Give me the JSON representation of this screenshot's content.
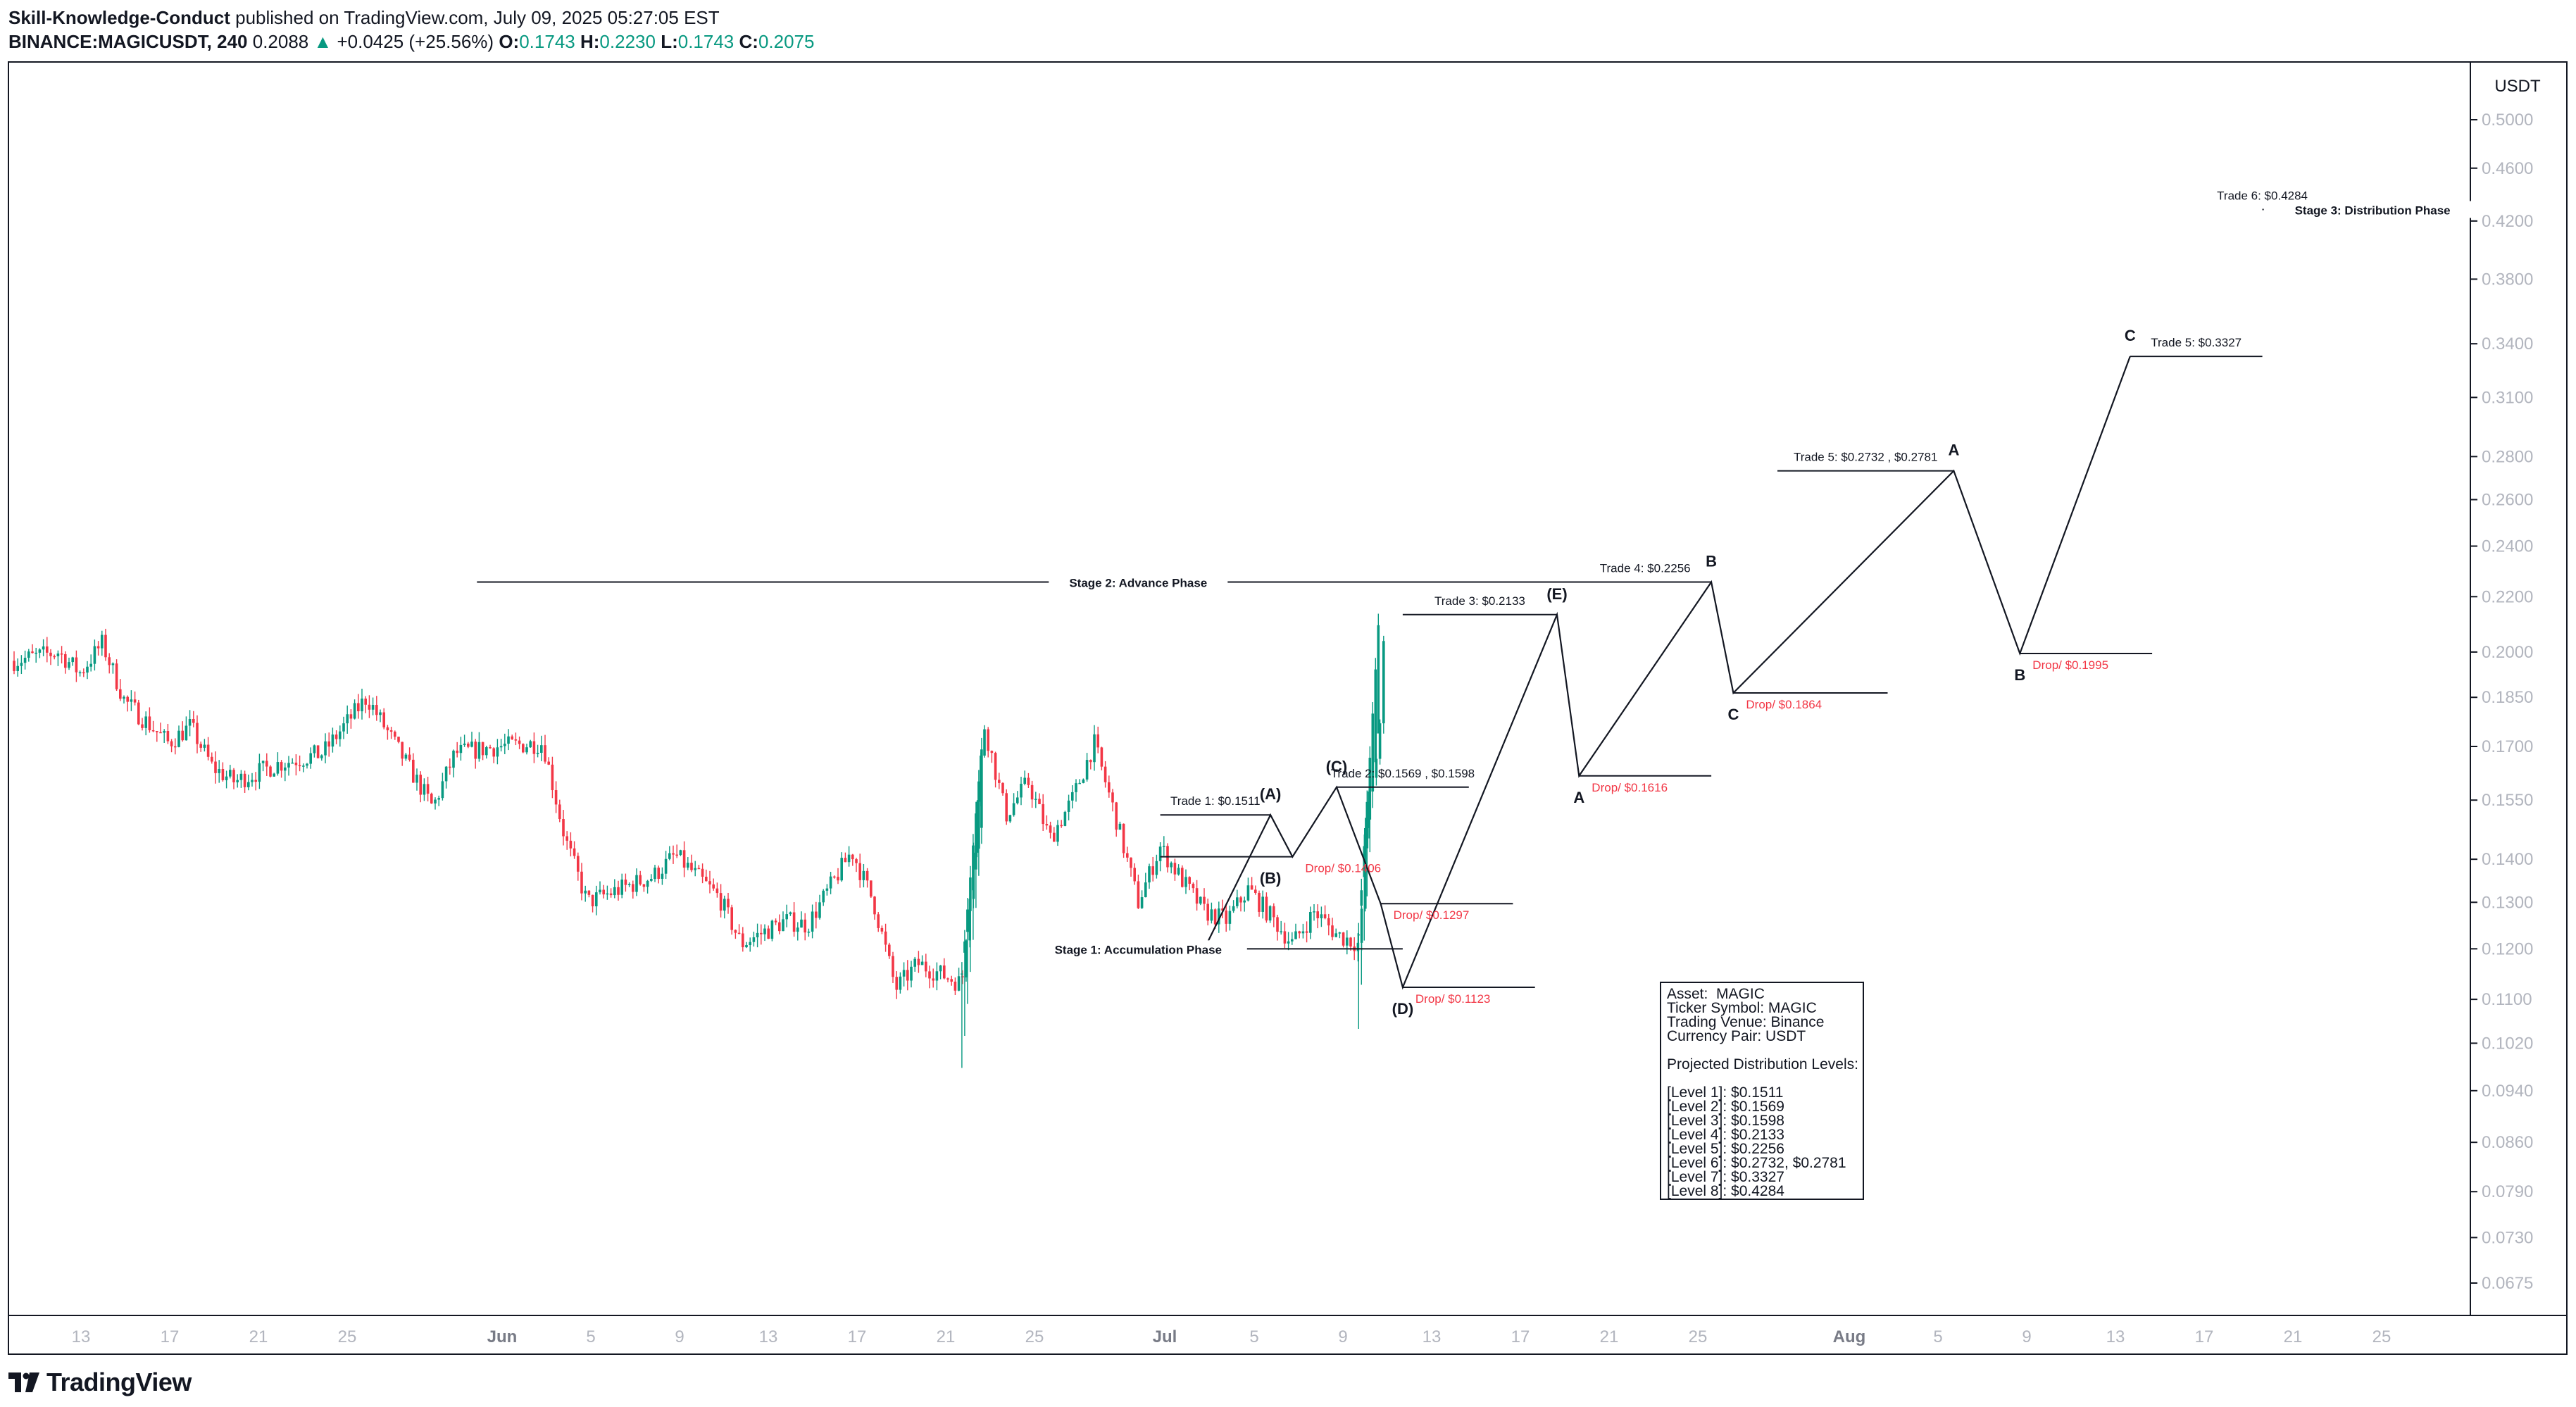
{
  "header": {
    "author": "Skill-Knowledge-Conduct",
    "published": " published on TradingView.com, July 09, 2025 05:27:05 EST",
    "symbol": "BINANCE:MAGICUSDT, 240",
    "last": "0.2088",
    "change": "+0.0425 (+25.56%)",
    "o_label": "O:",
    "o_value": "0.1743",
    "h_label": "H:",
    "h_value": "0.2230",
    "l_label": "L:",
    "l_value": "0.1743",
    "c_label": "C:",
    "c_value": "0.2075"
  },
  "footer": {
    "brand": "TradingView"
  },
  "colors": {
    "up": "#089981",
    "down": "#f23645",
    "drop_text": "#f23645",
    "line": "#131722",
    "grid_text": "#b2b5be"
  },
  "chart_data": {
    "type": "candlestick",
    "currency_label": "USDT",
    "y_scale": "log",
    "y_ticks": [
      "0.5000",
      "0.4600",
      "0.4200",
      "0.3800",
      "0.3400",
      "0.3100",
      "0.2800",
      "0.2600",
      "0.2400",
      "0.2200",
      "0.2000",
      "0.1850",
      "0.1700",
      "0.1550",
      "0.1400",
      "0.1300",
      "0.1200",
      "0.1100",
      "0.1020",
      "0.0940",
      "0.0860",
      "0.0790",
      "0.0730",
      "0.0675"
    ],
    "x_axis": [
      "13",
      "17",
      "21",
      "25",
      "Jun",
      "5",
      "9",
      "13",
      "17",
      "21",
      "25",
      "Jul",
      "5",
      "9",
      "13",
      "17",
      "21",
      "25",
      "Aug",
      "5",
      "9",
      "13",
      "17",
      "21",
      "25"
    ],
    "x_axis_bold": [
      "Jun",
      "Jul",
      "Aug"
    ],
    "x_range_days": [
      "2025-05-08",
      "2025-08-28"
    ],
    "price_path": [
      [
        "2025-05-08",
        0.197
      ],
      [
        "2025-05-10",
        0.2
      ],
      [
        "2025-05-11",
        0.193
      ],
      [
        "2025-05-12",
        0.203
      ],
      [
        "2025-05-13",
        0.184
      ],
      [
        "2025-05-15",
        0.171
      ],
      [
        "2025-05-16",
        0.176
      ],
      [
        "2025-05-17",
        0.164
      ],
      [
        "2025-05-18",
        0.16
      ],
      [
        "2025-05-20",
        0.165
      ],
      [
        "2025-05-22",
        0.168
      ],
      [
        "2025-05-24",
        0.185
      ],
      [
        "2025-05-26",
        0.163
      ],
      [
        "2025-05-27",
        0.153
      ],
      [
        "2025-05-28",
        0.168
      ],
      [
        "2025-05-30",
        0.17
      ],
      [
        "2025-06-01",
        0.171
      ],
      [
        "2025-06-02",
        0.145
      ],
      [
        "2025-06-03",
        0.13
      ],
      [
        "2025-06-04",
        0.132
      ],
      [
        "2025-06-06",
        0.136
      ],
      [
        "2025-06-07",
        0.141
      ],
      [
        "2025-06-09",
        0.131
      ],
      [
        "2025-06-10",
        0.121
      ],
      [
        "2025-06-12",
        0.126
      ],
      [
        "2025-06-13",
        0.125
      ],
      [
        "2025-06-15",
        0.142
      ],
      [
        "2025-06-16",
        0.13
      ],
      [
        "2025-06-17",
        0.112
      ],
      [
        "2025-06-18",
        0.117
      ],
      [
        "2025-06-20",
        0.113
      ],
      [
        "2025-06-21",
        0.177
      ],
      [
        "2025-06-22",
        0.151
      ],
      [
        "2025-06-23",
        0.16
      ],
      [
        "2025-06-24",
        0.145
      ],
      [
        "2025-06-25",
        0.155
      ],
      [
        "2025-06-26",
        0.171
      ],
      [
        "2025-06-27",
        0.15
      ],
      [
        "2025-06-28",
        0.13
      ],
      [
        "2025-06-29",
        0.143
      ],
      [
        "2025-06-30",
        0.135
      ],
      [
        "2025-07-01",
        0.128
      ],
      [
        "2025-07-02",
        0.126
      ],
      [
        "2025-07-03",
        0.133
      ],
      [
        "2025-07-04",
        0.127
      ],
      [
        "2025-07-05",
        0.121
      ],
      [
        "2025-07-06",
        0.128
      ],
      [
        "2025-07-07",
        0.123
      ],
      [
        "2025-07-08",
        0.121
      ],
      [
        "2025-07-08",
        0.128
      ],
      [
        "2025-07-08",
        0.15
      ],
      [
        "2025-07-09",
        0.176
      ],
      [
        "2025-07-09",
        0.207
      ]
    ],
    "highlight_candles": [
      [
        "2025-06-20",
        "2025-06-21",
        0.115,
        0.177
      ],
      [
        "2025-07-08",
        "2025-07-09",
        0.123,
        0.223
      ]
    ],
    "stage_lines": [
      {
        "label": "Stage 1: Accumulation Phase",
        "x1": "2025-06-25",
        "x2": "2025-07-10",
        "y": 0.12,
        "label_at": "2025-06-28"
      },
      {
        "label": "Stage 2: Advance Phase",
        "x1": "2025-05-29",
        "x2": "2025-07-22",
        "y": 0.2256,
        "label_at": "2025-06-28"
      },
      {
        "label": "Stage 3: Distribution Phase",
        "x1": "2025-08-18",
        "x2": "2025-08-19",
        "y": 0.4284,
        "label_at": "2025-08-23"
      }
    ],
    "projection_path": [
      [
        "2025-07-01",
        0.12
      ],
      [
        "2025-07-04",
        0.1511
      ],
      [
        "2025-07-05",
        0.1406
      ],
      [
        "2025-07-07",
        0.1585
      ],
      [
        "2025-07-09",
        0.1297
      ],
      [
        "2025-07-10",
        0.1123
      ],
      [
        "2025-07-17",
        0.2133
      ],
      [
        "2025-07-18",
        0.1616
      ],
      [
        "2025-07-24",
        0.2256
      ],
      [
        "2025-07-25",
        0.1864
      ],
      [
        "2025-08-04",
        0.2732
      ],
      [
        "2025-08-07",
        0.1995
      ],
      [
        "2025-08-12",
        0.3327
      ]
    ],
    "levels": [
      {
        "label": "Trade 1: $0.1511",
        "x1": "2025-06-29",
        "x2": "2025-07-04",
        "y": 0.1511,
        "kind": "trade"
      },
      {
        "label": "",
        "x1": "2025-06-29",
        "x2": "2025-07-05",
        "y": 0.1406,
        "kind": "plain"
      },
      {
        "label": "Trade 2: $0.1569 , $0.1598",
        "x1": "2025-07-07",
        "x2": "2025-07-13",
        "y": 0.1585,
        "kind": "trade"
      },
      {
        "label": "Trade 3: $0.2133",
        "x1": "2025-07-10",
        "x2": "2025-07-17",
        "y": 0.2133,
        "kind": "trade"
      },
      {
        "label": "Trade 4: $0.2256",
        "x1": "2025-07-18",
        "x2": "2025-07-24",
        "y": 0.2256,
        "kind": "trade"
      },
      {
        "label": "Trade 5: $0.2732 , $0.2781",
        "x1": "2025-07-27",
        "x2": "2025-08-04",
        "y": 0.2732,
        "kind": "trade"
      },
      {
        "label": "Trade 5: $0.3327",
        "x1": "2025-08-12",
        "x2": "2025-08-18",
        "y": 0.3327,
        "kind": "trade"
      },
      {
        "label": "Trade 6: $0.4284",
        "x1": "2025-08-18",
        "x2": "2025-08-18",
        "y": 0.4284,
        "kind": "trade"
      },
      {
        "label": "Drop/ $0.1406",
        "x1": "2025-07-05",
        "x2": "2025-07-05",
        "y": 0.1406,
        "kind": "drop"
      },
      {
        "label": "Drop/ $0.1297",
        "x1": "2025-07-09",
        "x2": "2025-07-15",
        "y": 0.1297,
        "kind": "drop"
      },
      {
        "label": "Drop/ $0.1123",
        "x1": "2025-07-10",
        "x2": "2025-07-16",
        "y": 0.1123,
        "kind": "drop"
      },
      {
        "label": "Drop/ $0.1616",
        "x1": "2025-07-18",
        "x2": "2025-07-24",
        "y": 0.1616,
        "kind": "drop"
      },
      {
        "label": "Drop/ $0.1864",
        "x1": "2025-07-25",
        "x2": "2025-08-01",
        "y": 0.1864,
        "kind": "drop"
      },
      {
        "label": "Drop/ $0.1995",
        "x1": "2025-08-07",
        "x2": "2025-08-13",
        "y": 0.1995,
        "kind": "drop"
      }
    ],
    "wave_labels": [
      {
        "label": "(A)",
        "x": "2025-07-04",
        "y": 0.1511,
        "pos": "above"
      },
      {
        "label": "(B)",
        "x": "2025-07-04",
        "y": 0.1406,
        "pos": "below"
      },
      {
        "label": "(C)",
        "x": "2025-07-07",
        "y": 0.1585,
        "pos": "above"
      },
      {
        "label": "(D)",
        "x": "2025-07-10",
        "y": 0.1123,
        "pos": "below"
      },
      {
        "label": "(E)",
        "x": "2025-07-17",
        "y": 0.2133,
        "pos": "above"
      },
      {
        "label": "A",
        "x": "2025-07-18",
        "y": 0.1616,
        "pos": "below"
      },
      {
        "label": "B",
        "x": "2025-07-24",
        "y": 0.2256,
        "pos": "above"
      },
      {
        "label": "C",
        "x": "2025-07-25",
        "y": 0.1864,
        "pos": "below"
      },
      {
        "label": "A",
        "x": "2025-08-04",
        "y": 0.2732,
        "pos": "above"
      },
      {
        "label": "B",
        "x": "2025-08-07",
        "y": 0.1995,
        "pos": "below"
      },
      {
        "label": "C",
        "x": "2025-08-12",
        "y": 0.3327,
        "pos": "above"
      }
    ]
  },
  "infobox": {
    "lines": [
      "Asset:  MAGIC",
      "Ticker Symbol: MAGIC",
      "Trading Venue: Binance",
      "Currency Pair: USDT",
      "",
      "Projected Distribution Levels:",
      "",
      "[Level 1]: $0.1511",
      "[Level 2]: $0.1569",
      "[Level 3]: $0.1598",
      "[Level 4]: $0.2133",
      "[Level 5]: $0.2256",
      "[Level 6]: $0.2732, $0.2781",
      "[Level 7]: $0.3327",
      "[Level 8]: $0.4284"
    ]
  }
}
